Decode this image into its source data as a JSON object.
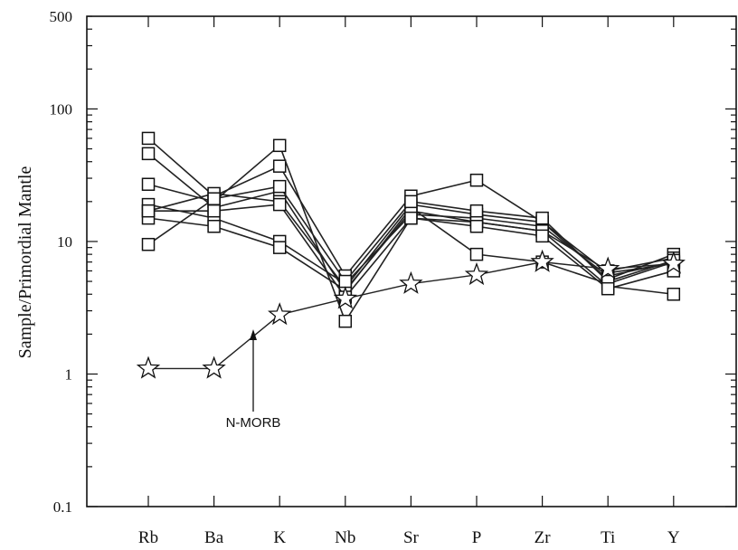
{
  "chart_data": {
    "type": "line",
    "ylabel": "Sample/Primordial Mantle",
    "xlabel": "",
    "yscale": "log",
    "ylim": [
      0.1,
      500
    ],
    "yticks": [
      {
        "value": 0.1,
        "label": "0.1"
      },
      {
        "value": 1,
        "label": "1"
      },
      {
        "value": 10,
        "label": "10"
      },
      {
        "value": 100,
        "label": "100"
      },
      {
        "value": 500,
        "label": "500"
      }
    ],
    "categories": [
      "Rb",
      "Ba",
      "K",
      "Nb",
      "Sr",
      "P",
      "Zr",
      "Ti",
      "Y"
    ],
    "series": [
      {
        "marker": "square",
        "values": [
          60,
          22,
          37,
          5.5,
          22,
          29,
          14,
          5.2,
          8
        ]
      },
      {
        "marker": "square",
        "values": [
          46,
          18,
          24,
          4.2,
          18,
          8,
          7,
          4.8,
          7
        ]
      },
      {
        "marker": "square",
        "values": [
          27,
          20,
          53,
          2.5,
          15,
          14,
          12,
          6,
          7.5
        ]
      },
      {
        "marker": "square",
        "values": [
          19,
          15,
          10,
          4.8,
          16,
          15,
          13,
          5.5,
          7
        ]
      },
      {
        "marker": "square",
        "values": [
          17,
          23,
          20,
          4.5,
          19,
          16,
          14,
          5.8,
          6.8
        ]
      },
      {
        "marker": "square",
        "values": [
          15,
          13,
          9,
          4.3,
          17,
          14,
          12,
          4.6,
          4
        ]
      },
      {
        "marker": "square",
        "values": [
          9.5,
          21,
          26,
          5.0,
          20,
          17,
          15,
          5,
          7.2
        ]
      },
      {
        "marker": "square",
        "values": [
          17,
          17,
          19,
          3.8,
          15,
          13,
          11,
          4.4,
          6
        ]
      }
    ],
    "reference": {
      "name": "N-MORB",
      "marker": "star",
      "values": [
        1.1,
        1.1,
        2.8,
        3.7,
        4.8,
        5.6,
        7.0,
        6.2,
        6.8
      ]
    },
    "annotations": [
      {
        "text": "N-MORB",
        "points_to": "K"
      }
    ],
    "grid": false
  }
}
